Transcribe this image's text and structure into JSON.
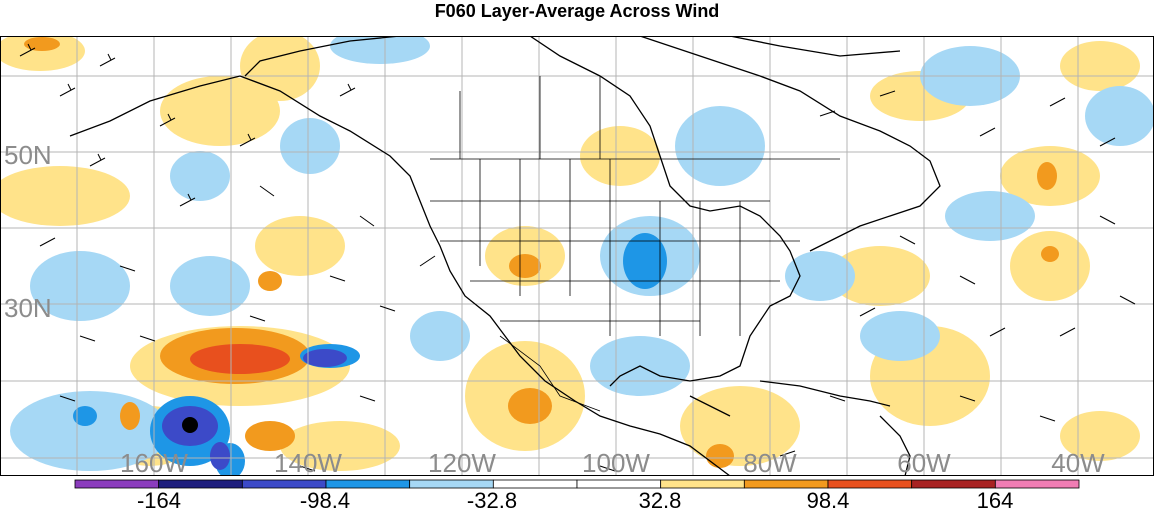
{
  "title": "F060 Layer-Average Across Wind",
  "map": {
    "lat_labels": [
      "50N",
      "30N"
    ],
    "lon_labels": [
      "160W",
      "140W",
      "120W",
      "100W",
      "80W",
      "60W",
      "40W"
    ],
    "label_color": "#8c8c8c",
    "grid_color": "#b4b4b4"
  },
  "colorbar": {
    "colors": [
      "#8b3cbd",
      "#1e1e7d",
      "#3c4ac8",
      "#1e96e6",
      "#a6d8f5",
      "#ffffff",
      "#ffffff",
      "#ffe38a",
      "#f29a1e",
      "#e8501e",
      "#a82222",
      "#f07db4"
    ],
    "tick_labels": [
      "-164",
      "-98.4",
      "-32.8",
      "32.8",
      "98.4",
      "164"
    ]
  }
}
